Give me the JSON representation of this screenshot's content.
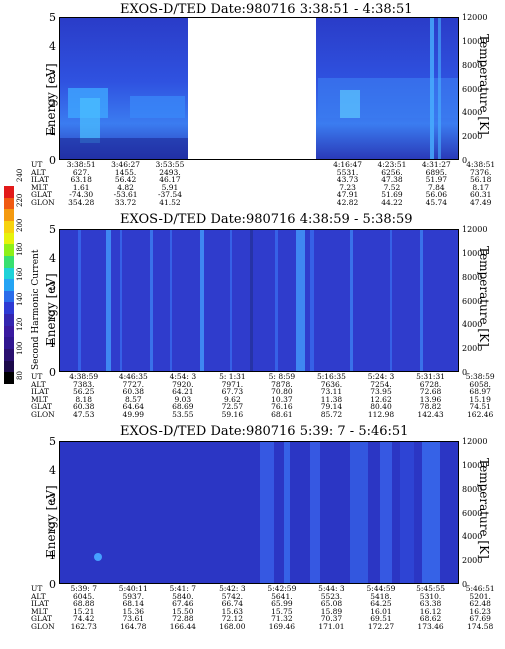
{
  "colors": {
    "background": "#ffffff",
    "plot_fill": "#2b3ac8",
    "gap": "#ffffff",
    "stripe_light": "#46a0ff",
    "stripe_mid": "#3a6ef0",
    "stripe_dark": "#24309a"
  },
  "colorbar": {
    "label": "Second Harmonic Current",
    "ticks": [
      "240",
      "220",
      "200",
      "180",
      "160",
      "140",
      "120",
      "100",
      "80"
    ],
    "colors": [
      "#e21a1a",
      "#f05a12",
      "#f49a10",
      "#f6d20e",
      "#e6f20c",
      "#8ef018",
      "#38e070",
      "#1ed2d8",
      "#24a4f4",
      "#2a6cea",
      "#2e3ad4",
      "#3426b0",
      "#3a1aa0",
      "#301690",
      "#2a1070",
      "#1c0a4a",
      "#000000"
    ]
  },
  "axis_labels": {
    "left": "Energy [eV]",
    "right": "Temperature [K]"
  },
  "energy_ticks": [
    "5",
    "4",
    "3",
    "2",
    "1",
    "0"
  ],
  "temperature_ticks": [
    "12000",
    "10000",
    "8000",
    "6000",
    "4000",
    "2000",
    "0"
  ],
  "panels": [
    {
      "title": "EXOS-D/TED   Date:980716   3:38:51 - 4:38:51",
      "row_labels": [
        "UT",
        "ALT",
        "ILAT",
        "MLT",
        "GLAT",
        "GLON"
      ],
      "columns": [
        [
          "3:38:51",
          "627.",
          "63.18",
          "1.61",
          "-74.30",
          "354.28"
        ],
        [
          "3:46:27",
          "1455.",
          "56.42",
          "4.82",
          "-53.61",
          "33.72"
        ],
        [
          "3:53:55",
          "2493.",
          "46.17",
          "5.91",
          "-37.54",
          "41.52"
        ],
        [
          "",
          "",
          "",
          "",
          "",
          ""
        ],
        [
          "",
          "",
          "",
          "",
          "",
          ""
        ],
        [
          "",
          "",
          "",
          "",
          "",
          ""
        ],
        [
          "4:16:47",
          "5531.",
          "43.73",
          "7.23",
          "47.91",
          "42.82"
        ],
        [
          "4:23:51",
          "6256.",
          "47.38",
          "7.52",
          "51.69",
          "44.22"
        ],
        [
          "4:31:27",
          "6895.",
          "51.97",
          "7.84",
          "56.06",
          "45.74"
        ],
        [
          "4:38:51",
          "7376.",
          "56.18",
          "8.17",
          "60.31",
          "47.49"
        ]
      ]
    },
    {
      "title": "EXOS-D/TED   Date:980716   4:38:59 - 5:38:59",
      "row_labels": [
        "UT",
        "ALT",
        "ILAT",
        "MLT",
        "GLAT",
        "GLON"
      ],
      "columns": [
        [
          "4:38:59",
          "7383.",
          "56.25",
          "8.18",
          "60.38",
          "47.53"
        ],
        [
          "4:46:35",
          "7727.",
          "60.38",
          "8.57",
          "64.64",
          "49.99"
        ],
        [
          "4:54: 3",
          "7920.",
          "64.21",
          "9.03",
          "68.69",
          "53.55"
        ],
        [
          "5: 1:31",
          "7971.",
          "67.73",
          "9.62",
          "72.57",
          "59.16"
        ],
        [
          "5: 8:59",
          "7878.",
          "70.80",
          "10.37",
          "76.16",
          "68.61"
        ],
        [
          "5:16:35",
          "7636.",
          "73.11",
          "11.38",
          "79.14",
          "85.72"
        ],
        [
          "5:24: 3",
          "7254.",
          "73.95",
          "12.62",
          "80.40",
          "112.98"
        ],
        [
          "5:31:31",
          "6728.",
          "72.68",
          "13.96",
          "78.82",
          "142.43"
        ],
        [
          "5:38:59",
          "6058.",
          "68.97",
          "15.19",
          "74.51",
          "162.46"
        ]
      ]
    },
    {
      "title": "EXOS-D/TED   Date:980716   5:39: 7 - 5:46:51",
      "row_labels": [
        "UT",
        "ALT",
        "ILAT",
        "MLT",
        "GLAT",
        "GLON"
      ],
      "columns": [
        [
          "5:39: 7",
          "6045.",
          "68.88",
          "15.21",
          "74.42",
          "162.73"
        ],
        [
          "5:40:11",
          "5937.",
          "68.14",
          "15.36",
          "73.61",
          "164.78"
        ],
        [
          "5:41: 7",
          "5840.",
          "67.46",
          "15.50",
          "72.88",
          "166.44"
        ],
        [
          "5:42: 3",
          "5742.",
          "66.74",
          "15.63",
          "72.12",
          "168.00"
        ],
        [
          "5:42:59",
          "5641.",
          "65.99",
          "15.75",
          "71.32",
          "169.46"
        ],
        [
          "5:44: 3",
          "5523.",
          "65.08",
          "15.89",
          "70.37",
          "171.01"
        ],
        [
          "5:44:59",
          "5418.",
          "64.25",
          "16.01",
          "69.51",
          "172.27"
        ],
        [
          "5:45:55",
          "5310.",
          "63.38",
          "16.12",
          "68.62",
          "173.46"
        ],
        [
          "5:46:51",
          "5201.",
          "62.48",
          "16.23",
          "67.69",
          "174.58"
        ]
      ]
    }
  ],
  "chart_data": [
    {
      "type": "heatmap",
      "title": "EXOS-D/TED   Date:980716   3:38:51 - 4:38:51",
      "ylabel": "Energy [eV]",
      "y2label": "Temperature [K]",
      "ylim": [
        0,
        5
      ],
      "y2lim": [
        0,
        12000
      ],
      "x": [
        "3:38:51",
        "3:46:27",
        "3:53:55",
        "4:16:47",
        "4:23:51",
        "4:31:27",
        "4:38:51"
      ],
      "data_gap": [
        "4:00",
        "4:16"
      ],
      "colorbar_label": "Second Harmonic Current",
      "colorbar_range": [
        80,
        240
      ]
    },
    {
      "type": "heatmap",
      "title": "EXOS-D/TED   Date:980716   4:38:59 - 5:38:59",
      "ylabel": "Energy [eV]",
      "y2label": "Temperature [K]",
      "ylim": [
        0,
        5
      ],
      "y2lim": [
        0,
        12000
      ],
      "x": [
        "4:38:59",
        "4:46:35",
        "4:54: 3",
        "5: 1:31",
        "5: 8:59",
        "5:16:35",
        "5:24: 3",
        "5:31:31",
        "5:38:59"
      ],
      "colorbar_label": "Second Harmonic Current",
      "colorbar_range": [
        80,
        240
      ]
    },
    {
      "type": "heatmap",
      "title": "EXOS-D/TED   Date:980716   5:39: 7 - 5:46:51",
      "ylabel": "Energy [eV]",
      "y2label": "Temperature [K]",
      "ylim": [
        0,
        5
      ],
      "y2lim": [
        0,
        12000
      ],
      "x": [
        "5:39: 7",
        "5:40:11",
        "5:41: 7",
        "5:42: 3",
        "5:42:59",
        "5:44: 3",
        "5:44:59",
        "5:45:55",
        "5:46:51"
      ],
      "colorbar_label": "Second Harmonic Current",
      "colorbar_range": [
        80,
        240
      ]
    }
  ]
}
